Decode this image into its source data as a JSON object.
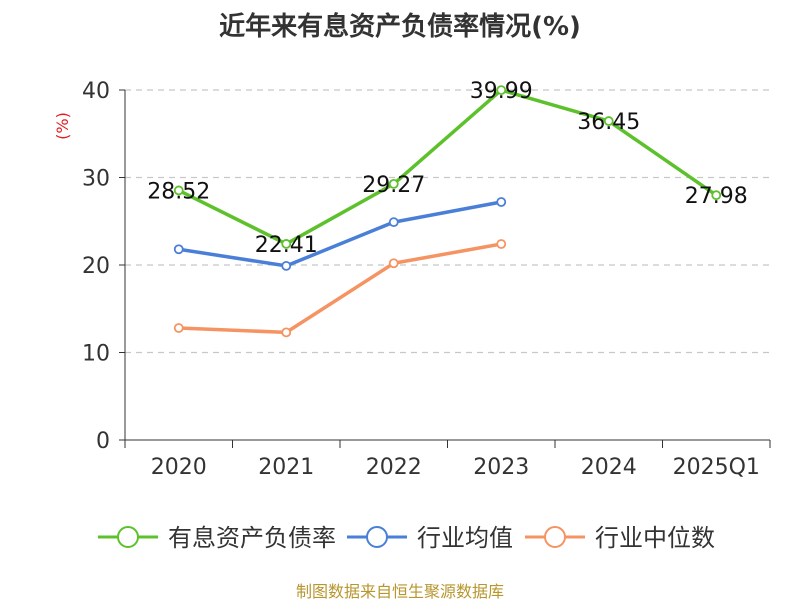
{
  "chart_data": {
    "type": "line",
    "title": "近年来有息资产负债率情况(%)",
    "ylabel": "(%)",
    "xlabel": "",
    "ylim": [
      0,
      40
    ],
    "yticks": [
      0,
      10,
      20,
      30,
      40
    ],
    "categories": [
      "2020",
      "2021",
      "2022",
      "2023",
      "2024",
      "2025Q1"
    ],
    "grid": "horizontal-dashed",
    "legend_position": "bottom",
    "series": [
      {
        "name": "有息资产负债率",
        "color": "#5dc12c",
        "values": [
          28.52,
          22.41,
          29.27,
          39.99,
          36.45,
          27.98
        ],
        "labels": [
          "28.52",
          "22.41",
          "29.27",
          "39.99",
          "36.45",
          "27.98"
        ]
      },
      {
        "name": "行业均值",
        "color": "#4a7fd8",
        "values": [
          21.8,
          19.9,
          24.9,
          27.2,
          null,
          null
        ]
      },
      {
        "name": "行业中位数",
        "color": "#f59462",
        "values": [
          12.8,
          12.3,
          20.2,
          22.4,
          null,
          null
        ]
      }
    ]
  },
  "source": "制图数据来自恒生聚源数据库"
}
